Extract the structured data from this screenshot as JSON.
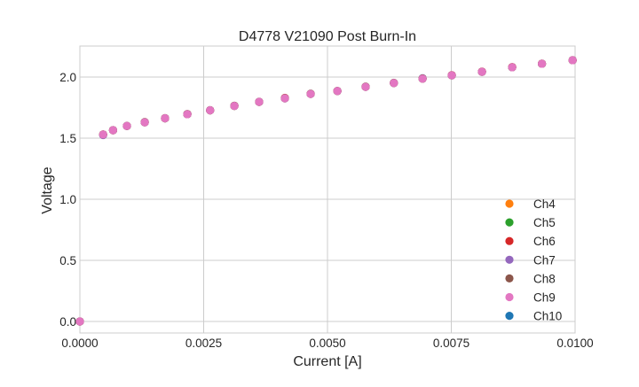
{
  "chart_data": {
    "type": "scatter",
    "title": "D4778 V21090 Post Burn-In",
    "xlabel": "Current [A]",
    "ylabel": "Voltage",
    "xlim": [
      0,
      0.01
    ],
    "ylim": [
      -0.1,
      2.25
    ],
    "xticks": [
      "0.0000",
      "0.0025",
      "0.0050",
      "0.0075",
      "0.0100"
    ],
    "xtick_values": [
      0,
      0.0025,
      0.005,
      0.0075,
      0.01
    ],
    "yticks": [
      "0.0",
      "0.5",
      "1.0",
      "1.5",
      "2.0"
    ],
    "ytick_values": [
      0,
      0.5,
      1.0,
      1.5,
      2.0
    ],
    "grid": true,
    "legend_position": "lower-right",
    "x": [
      0,
      0.00047,
      0.00067,
      0.00095,
      0.00131,
      0.00172,
      0.00217,
      0.00263,
      0.00312,
      0.00362,
      0.00414,
      0.00466,
      0.0052,
      0.00577,
      0.00634,
      0.00692,
      0.00751,
      0.00812,
      0.00873,
      0.00933,
      0.00995
    ],
    "series": [
      {
        "name": "Ch4",
        "color": "#ff7f0e",
        "values": [
          0,
          1.53,
          1.565,
          1.6,
          1.63,
          1.663,
          1.696,
          1.728,
          1.764,
          1.797,
          1.826,
          1.862,
          1.886,
          1.92,
          1.951,
          1.986,
          2.014,
          2.043,
          2.08,
          2.109,
          2.138
        ]
      },
      {
        "name": "Ch5",
        "color": "#2ca02c",
        "values": [
          0,
          1.53,
          1.565,
          1.6,
          1.63,
          1.663,
          1.696,
          1.728,
          1.764,
          1.797,
          1.826,
          1.862,
          1.886,
          1.92,
          1.951,
          1.986,
          2.014,
          2.043,
          2.08,
          2.109,
          2.138
        ]
      },
      {
        "name": "Ch6",
        "color": "#d62728",
        "values": [
          0,
          1.53,
          1.565,
          1.6,
          1.63,
          1.663,
          1.696,
          1.728,
          1.764,
          1.797,
          1.83,
          1.862,
          1.886,
          1.92,
          1.951,
          1.988,
          2.016,
          2.045,
          2.082,
          2.11,
          2.138
        ]
      },
      {
        "name": "Ch7",
        "color": "#9467bd",
        "values": [
          0,
          1.525,
          1.565,
          1.6,
          1.63,
          1.663,
          1.696,
          1.728,
          1.764,
          1.797,
          1.826,
          1.862,
          1.886,
          1.92,
          1.951,
          1.986,
          2.014,
          2.043,
          2.08,
          2.109,
          2.138
        ]
      },
      {
        "name": "Ch8",
        "color": "#8c564b",
        "values": [
          0,
          1.53,
          1.565,
          1.6,
          1.632,
          1.663,
          1.698,
          1.728,
          1.766,
          1.797,
          1.828,
          1.864,
          1.886,
          1.922,
          1.953,
          1.986,
          2.014,
          2.043,
          2.08,
          2.109,
          2.138
        ]
      },
      {
        "name": "Ch9",
        "color": "#e377c2",
        "values": [
          0,
          1.53,
          1.565,
          1.6,
          1.63,
          1.663,
          1.696,
          1.728,
          1.764,
          1.797,
          1.826,
          1.862,
          1.886,
          1.92,
          1.951,
          1.986,
          2.014,
          2.043,
          2.08,
          2.109,
          2.138
        ]
      },
      {
        "name": "Ch10",
        "color": "#1f77b4",
        "values": [
          0,
          1.53,
          1.565,
          1.6,
          1.63,
          1.663,
          1.696,
          1.728,
          1.764,
          1.797,
          1.826,
          1.862,
          1.886,
          1.92,
          1.951,
          1.99,
          2.014,
          2.043,
          2.08,
          2.109,
          2.138
        ]
      }
    ]
  }
}
